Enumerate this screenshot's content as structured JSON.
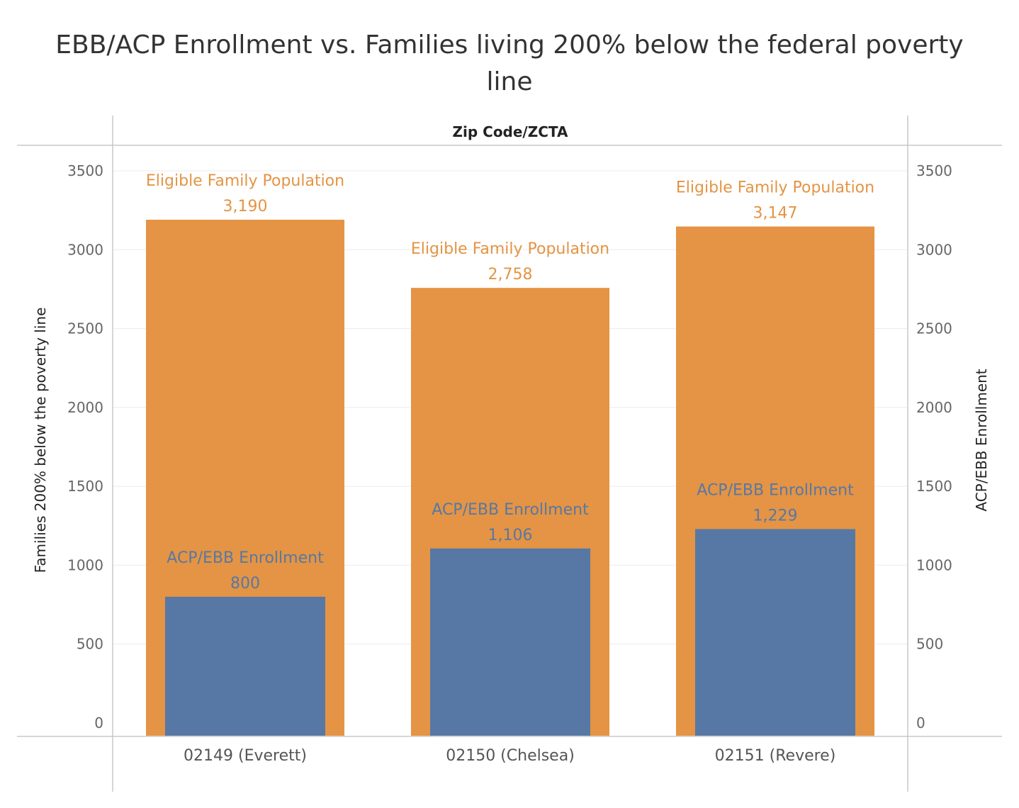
{
  "chart_data": {
    "type": "bar",
    "title_lines": [
      "EBB/ACP Enrollment vs. Families living 200% below the federal poverty",
      "line"
    ],
    "header": "Zip Code/ZCTA",
    "categories": [
      "02149 (Everett)",
      "02150 (Chelsea)",
      "02151 (Revere)"
    ],
    "series": [
      {
        "name": "Eligible Family Population",
        "values": [
          3190,
          2758,
          3147
        ],
        "value_labels": [
          "3,190",
          "2,758",
          "3,147"
        ],
        "color": "#E49444"
      },
      {
        "name": "ACP/EBB Enrollment",
        "values": [
          800,
          1106,
          1229
        ],
        "value_labels": [
          "800",
          "1,106",
          "1,229"
        ],
        "color": "#5778A4"
      }
    ],
    "ylabel_left": "Families 200% below the poverty line",
    "ylabel_right": "ACP/EBB Enrollment",
    "ylim": [
      0,
      3500
    ],
    "yticks": [
      0,
      500,
      1000,
      1500,
      2000,
      2500,
      3000,
      3500
    ],
    "grid": true,
    "colors": {
      "title": "#333333",
      "orange_label": "#E49444",
      "blue_label": "#5778A4",
      "gridline": "#EBEBEB",
      "frame": "#C8C8C8"
    }
  }
}
